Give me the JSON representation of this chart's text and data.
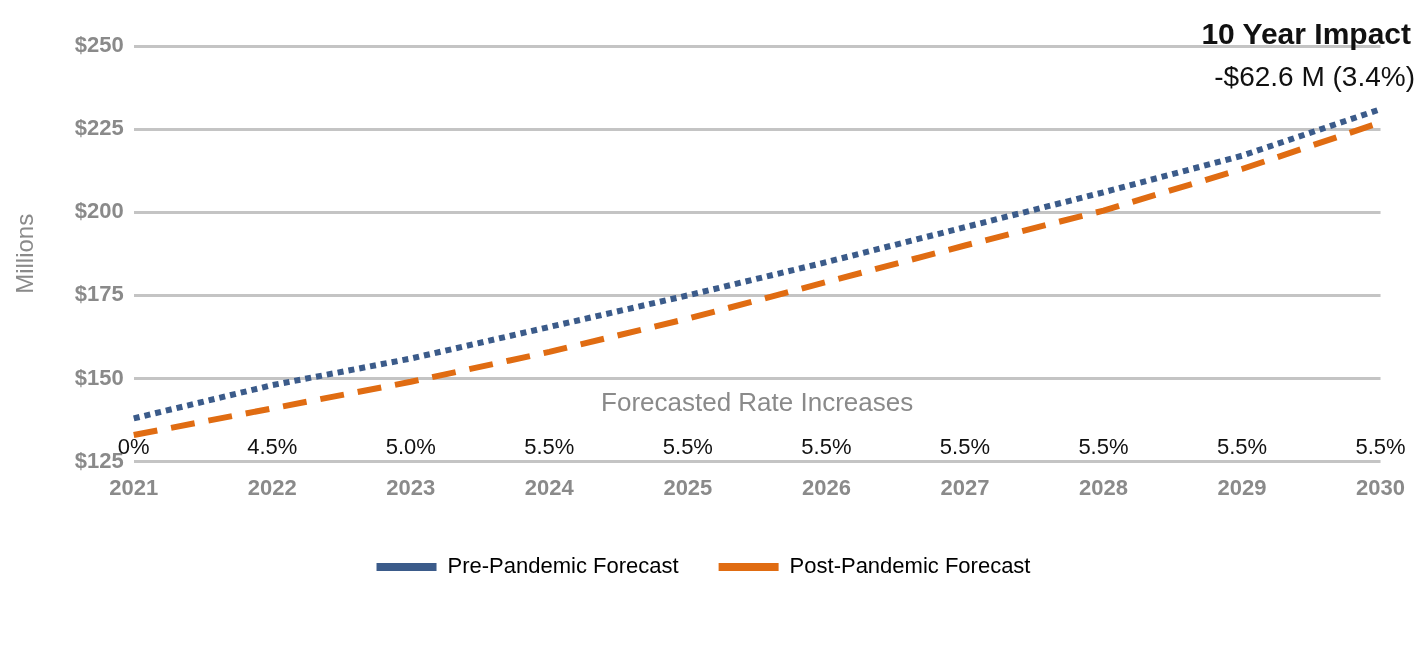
{
  "chart_data": {
    "type": "line",
    "title": "10 Year Impact",
    "subtitle": "-$62.6 M (3.4%)",
    "ylabel": "Millions",
    "categories": [
      "2021",
      "2022",
      "2023",
      "2024",
      "2025",
      "2026",
      "2027",
      "2028",
      "2029",
      "2030"
    ],
    "series": [
      {
        "name": "Pre-Pandemic Forecast",
        "color": "#3b5b8a",
        "line_style": "dotted",
        "values": [
          138,
          148,
          156,
          165.5,
          175,
          185,
          195.5,
          206,
          217,
          231
        ]
      },
      {
        "name": "Post-Pandemic Forecast",
        "color": "#e06c12",
        "line_style": "dashed",
        "values": [
          133,
          141,
          149,
          158,
          168,
          179,
          190,
          200.5,
          213,
          227
        ]
      }
    ],
    "ylim": [
      125,
      250
    ],
    "yticks": [
      {
        "value": 125,
        "label": "$125"
      },
      {
        "value": 150,
        "label": "$150"
      },
      {
        "value": 175,
        "label": "$175"
      },
      {
        "value": 200,
        "label": "$200"
      },
      {
        "value": 225,
        "label": "$225"
      },
      {
        "value": 250,
        "label": "$250"
      }
    ],
    "grid": "y",
    "legend": "bottom",
    "marker": "none",
    "annotations": [
      "Forecasted Rate Increases",
      "0%",
      "4.5%",
      "5.0%",
      "5.5%",
      "5.5%",
      "5.5%",
      "5.5%",
      "5.5%",
      "5.5%",
      "5.5%"
    ]
  }
}
